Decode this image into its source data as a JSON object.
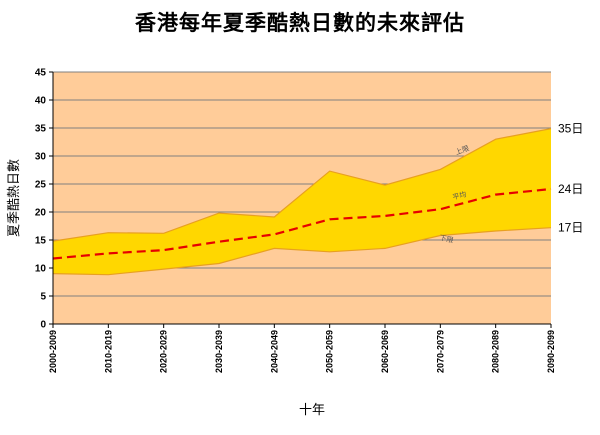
{
  "chart_data": {
    "type": "area",
    "title": "香港每年夏季酷熱日數的未來評估",
    "xlabel": "十年",
    "ylabel": "夏季酷熱日數",
    "ylim": [
      0,
      45
    ],
    "yticks": [
      0,
      5,
      10,
      15,
      20,
      25,
      30,
      35,
      40,
      45
    ],
    "grid": true,
    "legend": "none",
    "categories": [
      "2000-2009",
      "2010-2019",
      "2020-2029",
      "2030-2039",
      "2040-2049",
      "2050-2059",
      "2060-2069",
      "2070-2079",
      "2080-2089",
      "2090-2099"
    ],
    "series": [
      {
        "name": "上限",
        "role": "upper",
        "values": [
          14.8,
          16.3,
          16.2,
          19.8,
          19.1,
          27.3,
          24.8,
          27.6,
          33.0,
          34.9
        ],
        "end_label": "35日"
      },
      {
        "name": "平均",
        "role": "mean",
        "values": [
          11.7,
          12.6,
          13.2,
          14.7,
          16.0,
          18.7,
          19.3,
          20.5,
          23.1,
          24.1
        ],
        "end_label": "24日"
      },
      {
        "name": "下限",
        "role": "lower",
        "values": [
          9.0,
          8.8,
          9.8,
          10.8,
          13.5,
          12.9,
          13.5,
          15.8,
          16.6,
          17.2
        ],
        "end_label": "17日"
      }
    ],
    "colors": {
      "plot_background": "#FFCC99",
      "band_fill": "#FFD700",
      "band_edge": "#E8A020",
      "mean_line": "#E60000",
      "gridline": "#808080",
      "axis": "#000000"
    }
  }
}
